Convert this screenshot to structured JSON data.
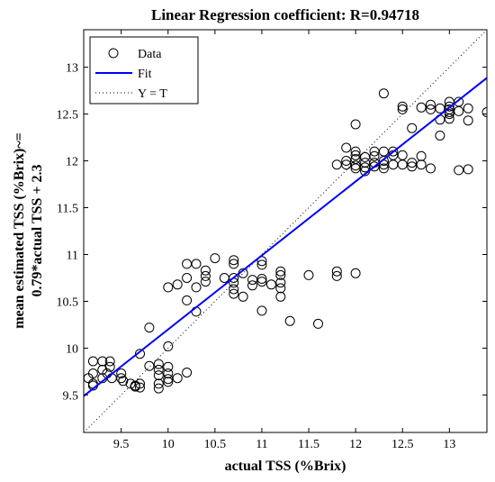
{
  "chart_data": {
    "type": "scatter",
    "title": "Linear Regression coefficient: R=0.94718",
    "xlabel": "actual TSS (%Brix)",
    "ylabel_line1": "mean estimated TSS (%Brix)~=",
    "ylabel_line2": "0.79*actual TSS + 2.3",
    "xlim": [
      9.1,
      13.4
    ],
    "ylim": [
      9.1,
      13.4
    ],
    "xticks": [
      9.5,
      10,
      10.5,
      11,
      11.5,
      12,
      12.5,
      13
    ],
    "yticks": [
      9.5,
      10,
      10.5,
      11,
      11.5,
      12,
      12.5,
      13
    ],
    "xtick_labels": [
      "9.5",
      "10",
      "10.5",
      "11",
      "11.5",
      "12",
      "12.5",
      "13"
    ],
    "ytick_labels": [
      "9.5",
      "10",
      "10.5",
      "11",
      "11.5",
      "12",
      "12.5",
      "13"
    ],
    "grid": false,
    "legend_position": "top-left",
    "colors": {
      "data": "#000000",
      "fit": "#0000ff",
      "identity": "#000000"
    },
    "series": [
      {
        "name": "Data",
        "style": "circle",
        "points": [
          [
            9.15,
            9.68
          ],
          [
            9.2,
            9.86
          ],
          [
            9.2,
            9.73
          ],
          [
            9.2,
            9.62
          ],
          [
            9.2,
            9.6
          ],
          [
            9.3,
            9.86
          ],
          [
            9.3,
            9.77
          ],
          [
            9.3,
            9.68
          ],
          [
            9.35,
            9.73
          ],
          [
            9.38,
            9.86
          ],
          [
            9.38,
            9.8
          ],
          [
            9.4,
            9.68
          ],
          [
            9.5,
            9.73
          ],
          [
            9.5,
            9.68
          ],
          [
            9.52,
            9.65
          ],
          [
            9.6,
            9.62
          ],
          [
            9.65,
            9.59
          ],
          [
            9.65,
            9.6
          ],
          [
            9.7,
            9.62
          ],
          [
            9.7,
            9.58
          ],
          [
            9.7,
            9.94
          ],
          [
            9.8,
            10.22
          ],
          [
            9.8,
            9.81
          ],
          [
            9.9,
            9.83
          ],
          [
            9.9,
            9.77
          ],
          [
            9.9,
            9.71
          ],
          [
            9.9,
            9.62
          ],
          [
            9.9,
            9.57
          ],
          [
            10.0,
            9.8
          ],
          [
            10.0,
            9.73
          ],
          [
            10.0,
            9.67
          ],
          [
            10.0,
            9.64
          ],
          [
            10.0,
            10.02
          ],
          [
            10.0,
            10.65
          ],
          [
            10.1,
            9.68
          ],
          [
            10.1,
            10.68
          ],
          [
            10.2,
            10.9
          ],
          [
            10.2,
            10.75
          ],
          [
            10.2,
            10.51
          ],
          [
            10.2,
            9.74
          ],
          [
            10.3,
            10.9
          ],
          [
            10.3,
            10.65
          ],
          [
            10.3,
            10.39
          ],
          [
            10.4,
            10.83
          ],
          [
            10.4,
            10.77
          ],
          [
            10.4,
            10.71
          ],
          [
            10.5,
            10.96
          ],
          [
            10.6,
            10.75
          ],
          [
            10.7,
            10.94
          ],
          [
            10.7,
            10.9
          ],
          [
            10.7,
            10.75
          ],
          [
            10.7,
            10.7
          ],
          [
            10.7,
            10.63
          ],
          [
            10.7,
            10.58
          ],
          [
            10.8,
            10.8
          ],
          [
            10.8,
            10.55
          ],
          [
            10.9,
            10.73
          ],
          [
            10.9,
            10.67
          ],
          [
            11.0,
            10.93
          ],
          [
            11.0,
            10.89
          ],
          [
            11.0,
            10.74
          ],
          [
            11.0,
            10.71
          ],
          [
            11.0,
            10.4
          ],
          [
            11.1,
            10.68
          ],
          [
            11.2,
            10.82
          ],
          [
            11.2,
            10.78
          ],
          [
            11.2,
            10.7
          ],
          [
            11.2,
            10.64
          ],
          [
            11.2,
            10.55
          ],
          [
            11.3,
            10.29
          ],
          [
            11.5,
            10.78
          ],
          [
            11.6,
            10.26
          ],
          [
            11.8,
            10.82
          ],
          [
            11.8,
            10.77
          ],
          [
            12.0,
            10.8
          ],
          [
            11.8,
            11.96
          ],
          [
            11.9,
            12.14
          ],
          [
            11.9,
            12.0
          ],
          [
            11.9,
            11.96
          ],
          [
            12.0,
            12.39
          ],
          [
            12.0,
            12.1
          ],
          [
            12.0,
            12.06
          ],
          [
            12.0,
            12.02
          ],
          [
            12.0,
            11.95
          ],
          [
            12.0,
            11.92
          ],
          [
            12.1,
            12.04
          ],
          [
            12.1,
            11.98
          ],
          [
            12.1,
            11.93
          ],
          [
            12.1,
            11.89
          ],
          [
            12.2,
            12.1
          ],
          [
            12.2,
            12.05
          ],
          [
            12.2,
            11.98
          ],
          [
            12.2,
            11.94
          ],
          [
            12.3,
            12.72
          ],
          [
            12.3,
            12.1
          ],
          [
            12.3,
            12.0
          ],
          [
            12.3,
            11.96
          ],
          [
            12.3,
            11.92
          ],
          [
            12.4,
            12.1
          ],
          [
            12.4,
            12.06
          ],
          [
            12.4,
            11.96
          ],
          [
            12.5,
            12.58
          ],
          [
            12.5,
            12.55
          ],
          [
            12.5,
            12.06
          ],
          [
            12.5,
            11.96
          ],
          [
            12.6,
            12.35
          ],
          [
            12.6,
            11.98
          ],
          [
            12.6,
            11.94
          ],
          [
            12.7,
            12.57
          ],
          [
            12.7,
            12.05
          ],
          [
            12.7,
            11.96
          ],
          [
            12.8,
            12.6
          ],
          [
            12.8,
            12.55
          ],
          [
            12.8,
            11.92
          ],
          [
            12.9,
            12.56
          ],
          [
            12.9,
            12.44
          ],
          [
            12.9,
            12.27
          ],
          [
            13.0,
            12.63
          ],
          [
            13.0,
            12.58
          ],
          [
            13.0,
            12.55
          ],
          [
            13.0,
            12.52
          ],
          [
            13.0,
            12.5
          ],
          [
            13.0,
            12.45
          ],
          [
            13.1,
            12.63
          ],
          [
            13.1,
            12.53
          ],
          [
            13.1,
            11.9
          ],
          [
            13.2,
            12.56
          ],
          [
            13.2,
            12.43
          ],
          [
            13.2,
            11.91
          ],
          [
            13.4,
            12.52
          ]
        ]
      },
      {
        "name": "Fit",
        "style": "line",
        "slope": 0.79,
        "intercept": 2.3
      },
      {
        "name": "Y = T",
        "style": "dotted",
        "slope": 1,
        "intercept": 0
      }
    ]
  }
}
